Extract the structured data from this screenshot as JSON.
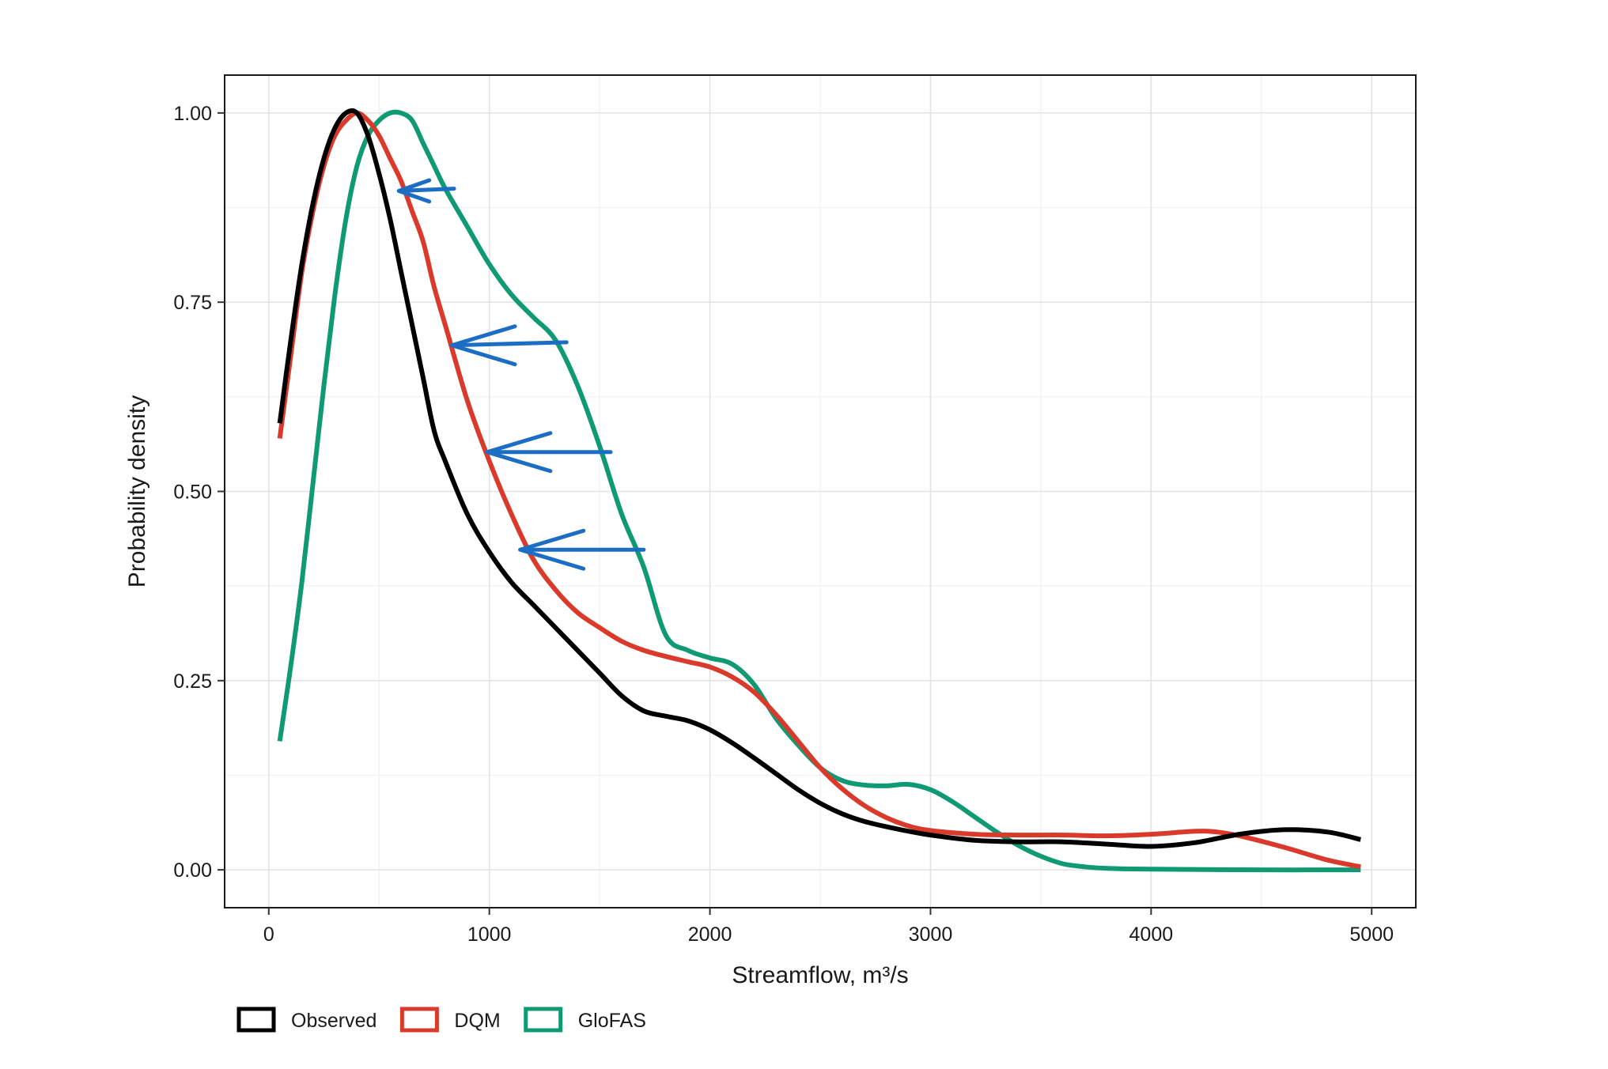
{
  "chart_data": {
    "type": "line",
    "title": "",
    "xlabel": "Streamflow, m³/s",
    "ylabel": "Probability density",
    "xlim": [
      -200,
      5200
    ],
    "ylim": [
      -0.05,
      1.05
    ],
    "x_ticks": [
      0,
      1000,
      2000,
      3000,
      4000,
      5000
    ],
    "x_tick_labels": [
      "0",
      "1000",
      "2000",
      "3000",
      "4000",
      "5000"
    ],
    "y_ticks": [
      0,
      0.25,
      0.5,
      0.75,
      1.0
    ],
    "y_tick_labels": [
      "0.00",
      "0.25",
      "0.50",
      "0.75",
      "1.00"
    ],
    "grid": true,
    "legend_position": "bottom-left",
    "series": [
      {
        "name": "Observed",
        "color": "#000000",
        "points": [
          [
            50,
            0.59
          ],
          [
            100,
            0.7
          ],
          [
            150,
            0.8
          ],
          [
            200,
            0.88
          ],
          [
            250,
            0.94
          ],
          [
            300,
            0.98
          ],
          [
            350,
            1.0
          ],
          [
            400,
            1.0
          ],
          [
            450,
            0.97
          ],
          [
            500,
            0.92
          ],
          [
            550,
            0.86
          ],
          [
            600,
            0.79
          ],
          [
            650,
            0.72
          ],
          [
            700,
            0.65
          ],
          [
            750,
            0.58
          ],
          [
            800,
            0.54
          ],
          [
            900,
            0.47
          ],
          [
            1000,
            0.42
          ],
          [
            1100,
            0.38
          ],
          [
            1200,
            0.35
          ],
          [
            1300,
            0.32
          ],
          [
            1400,
            0.29
          ],
          [
            1500,
            0.26
          ],
          [
            1600,
            0.23
          ],
          [
            1700,
            0.21
          ],
          [
            1800,
            0.203
          ],
          [
            1900,
            0.197
          ],
          [
            2000,
            0.185
          ],
          [
            2100,
            0.168
          ],
          [
            2200,
            0.148
          ],
          [
            2300,
            0.127
          ],
          [
            2400,
            0.106
          ],
          [
            2500,
            0.088
          ],
          [
            2600,
            0.074
          ],
          [
            2700,
            0.064
          ],
          [
            2800,
            0.057
          ],
          [
            2900,
            0.051
          ],
          [
            3000,
            0.046
          ],
          [
            3200,
            0.039
          ],
          [
            3400,
            0.037
          ],
          [
            3600,
            0.037
          ],
          [
            3800,
            0.034
          ],
          [
            4000,
            0.031
          ],
          [
            4200,
            0.036
          ],
          [
            4400,
            0.047
          ],
          [
            4600,
            0.053
          ],
          [
            4800,
            0.05
          ],
          [
            4950,
            0.04
          ]
        ]
      },
      {
        "name": "DQM",
        "color": "#d93a2b",
        "points": [
          [
            50,
            0.57
          ],
          [
            100,
            0.68
          ],
          [
            150,
            0.79
          ],
          [
            200,
            0.87
          ],
          [
            250,
            0.93
          ],
          [
            300,
            0.97
          ],
          [
            350,
            0.99
          ],
          [
            400,
            1.0
          ],
          [
            450,
            0.99
          ],
          [
            500,
            0.97
          ],
          [
            550,
            0.94
          ],
          [
            600,
            0.91
          ],
          [
            650,
            0.87
          ],
          [
            700,
            0.83
          ],
          [
            750,
            0.77
          ],
          [
            800,
            0.72
          ],
          [
            900,
            0.62
          ],
          [
            1000,
            0.54
          ],
          [
            1100,
            0.47
          ],
          [
            1200,
            0.41
          ],
          [
            1300,
            0.37
          ],
          [
            1400,
            0.34
          ],
          [
            1500,
            0.32
          ],
          [
            1600,
            0.302
          ],
          [
            1700,
            0.29
          ],
          [
            1800,
            0.282
          ],
          [
            1900,
            0.275
          ],
          [
            2000,
            0.268
          ],
          [
            2100,
            0.255
          ],
          [
            2200,
            0.235
          ],
          [
            2300,
            0.205
          ],
          [
            2400,
            0.17
          ],
          [
            2500,
            0.135
          ],
          [
            2600,
            0.107
          ],
          [
            2700,
            0.085
          ],
          [
            2800,
            0.069
          ],
          [
            2900,
            0.058
          ],
          [
            3000,
            0.052
          ],
          [
            3200,
            0.047
          ],
          [
            3400,
            0.046
          ],
          [
            3600,
            0.046
          ],
          [
            3800,
            0.045
          ],
          [
            4000,
            0.047
          ],
          [
            4200,
            0.051
          ],
          [
            4300,
            0.05
          ],
          [
            4400,
            0.045
          ],
          [
            4600,
            0.03
          ],
          [
            4800,
            0.013
          ],
          [
            4950,
            0.004
          ]
        ]
      },
      {
        "name": "GloFAS",
        "color": "#0f9a74",
        "points": [
          [
            50,
            0.17
          ],
          [
            100,
            0.27
          ],
          [
            150,
            0.38
          ],
          [
            200,
            0.51
          ],
          [
            250,
            0.64
          ],
          [
            300,
            0.76
          ],
          [
            350,
            0.86
          ],
          [
            400,
            0.93
          ],
          [
            450,
            0.97
          ],
          [
            500,
            0.99
          ],
          [
            550,
            1.0
          ],
          [
            600,
            1.0
          ],
          [
            650,
            0.99
          ],
          [
            700,
            0.96
          ],
          [
            750,
            0.93
          ],
          [
            800,
            0.9
          ],
          [
            900,
            0.85
          ],
          [
            1000,
            0.8
          ],
          [
            1100,
            0.76
          ],
          [
            1200,
            0.73
          ],
          [
            1300,
            0.7
          ],
          [
            1400,
            0.64
          ],
          [
            1500,
            0.56
          ],
          [
            1600,
            0.47
          ],
          [
            1700,
            0.4
          ],
          [
            1800,
            0.31
          ],
          [
            1900,
            0.29
          ],
          [
            2000,
            0.28
          ],
          [
            2100,
            0.272
          ],
          [
            2200,
            0.245
          ],
          [
            2300,
            0.2
          ],
          [
            2400,
            0.165
          ],
          [
            2500,
            0.135
          ],
          [
            2600,
            0.118
          ],
          [
            2700,
            0.112
          ],
          [
            2800,
            0.111
          ],
          [
            2900,
            0.113
          ],
          [
            3000,
            0.106
          ],
          [
            3100,
            0.09
          ],
          [
            3200,
            0.07
          ],
          [
            3300,
            0.05
          ],
          [
            3400,
            0.032
          ],
          [
            3500,
            0.018
          ],
          [
            3600,
            0.008
          ],
          [
            3700,
            0.004
          ],
          [
            3800,
            0.002
          ],
          [
            4000,
            0.001
          ],
          [
            4500,
            0.0
          ],
          [
            4950,
            0.0
          ]
        ]
      }
    ],
    "annotations": [
      {
        "type": "arrow",
        "color": "#1b6ec4",
        "from": [
          840,
          0.9
        ],
        "to": [
          590,
          0.897
        ]
      },
      {
        "type": "arrow",
        "color": "#1b6ec4",
        "from": [
          1350,
          0.697
        ],
        "to": [
          830,
          0.693
        ]
      },
      {
        "type": "arrow",
        "color": "#1b6ec4",
        "from": [
          1550,
          0.552
        ],
        "to": [
          990,
          0.552
        ]
      },
      {
        "type": "arrow",
        "color": "#1b6ec4",
        "from": [
          1700,
          0.423
        ],
        "to": [
          1140,
          0.423
        ]
      }
    ]
  }
}
